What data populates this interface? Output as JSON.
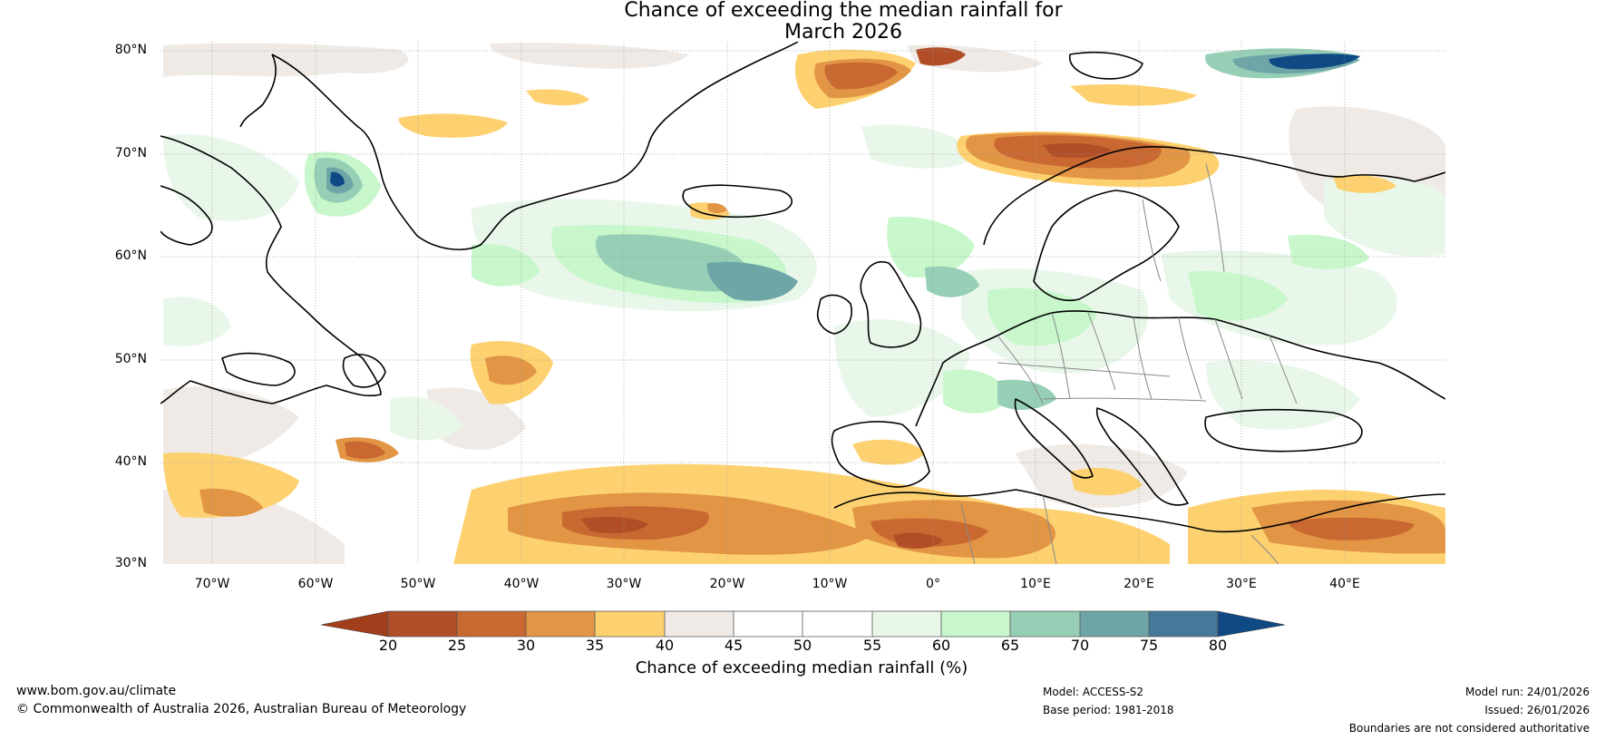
{
  "title": {
    "line1": "Chance of exceeding the median rainfall for",
    "line2": "March 2026"
  },
  "latitude_labels": [
    "80°N",
    "70°N",
    "60°N",
    "50°N",
    "40°N",
    "30°N"
  ],
  "longitude_labels": [
    "70°W",
    "60°W",
    "50°W",
    "40°W",
    "30°W",
    "20°W",
    "10°W",
    "0°",
    "10°E",
    "20°E",
    "30°E",
    "40°E"
  ],
  "colorbar": {
    "ticks": [
      "20",
      "25",
      "30",
      "35",
      "40",
      "45",
      "50",
      "55",
      "60",
      "65",
      "70",
      "75",
      "80"
    ],
    "label": "Chance of exceeding median rainfall (%)",
    "colors": {
      "below20": "#a23e1c",
      "c20_25": "#b14e27",
      "c25_30": "#c96831",
      "c30_35": "#e29545",
      "c35_40": "#fdd170",
      "c40_45": "#efeae5",
      "c45_50": "#ffffff",
      "c50_55": "#ffffff",
      "c55_60": "#e8f7e9",
      "c60_65": "#c7f7cb",
      "c65_70": "#96cfb6",
      "c70_75": "#6ea6a8",
      "c75_80": "#45799a",
      "above80": "#0f4a85"
    }
  },
  "footer": {
    "website": "www.bom.gov.au/climate",
    "copyright": "© Commonwealth of Australia 2026, Australian Bureau of Meteorology",
    "model": "Model: ACCESS-S2",
    "base_period": "Base period: 1981-2018",
    "model_run": "Model run: 24/01/2026",
    "issued": "Issued: 26/01/2026",
    "disclaimer": "Boundaries are not considered authoritative"
  }
}
